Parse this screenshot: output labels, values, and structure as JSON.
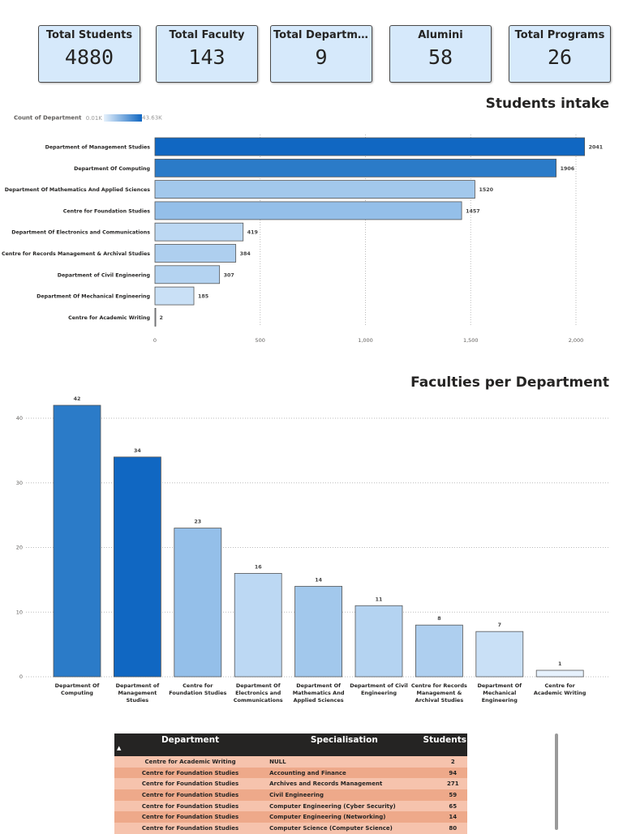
{
  "kpis": [
    {
      "label": "Total Students",
      "value": "4880"
    },
    {
      "label": "Total Faculty",
      "value": "143"
    },
    {
      "label": "Total Departments",
      "value": "9"
    },
    {
      "label": "Alumini",
      "value": "58"
    },
    {
      "label": "Total Programs",
      "value": "26"
    }
  ],
  "chart_data": [
    {
      "type": "bar",
      "orientation": "horizontal",
      "title": "Students intake",
      "legend": {
        "label": "Count of Department",
        "min": "0.01K",
        "max": "43.63K",
        "colors": [
          "#e6f1fc",
          "#1067c2"
        ]
      },
      "categories": [
        "Department of Management Studies",
        "Department Of Computing",
        "Department Of Mathematics And Applied Sciences",
        "Centre for Foundation Studies",
        "Department Of Electronics and Communications",
        "Centre for Records Management & Archival Studies",
        "Department of Civil Engineering",
        "Department Of Mechanical Engineering",
        "Centre for Academic Writing"
      ],
      "values": [
        2041,
        1906,
        1520,
        1457,
        419,
        384,
        307,
        185,
        2
      ],
      "colors": [
        "#1067c2",
        "#2b7bc8",
        "#a2c8ec",
        "#94bfe9",
        "#bcd8f3",
        "#aecfef",
        "#b4d3f1",
        "#c9e0f6",
        "#e6f1fc"
      ],
      "xticks": [
        "0",
        "500",
        "1,000",
        "1,500",
        "2,000"
      ],
      "xlim": [
        0,
        2041
      ],
      "grid": true
    },
    {
      "type": "bar",
      "orientation": "vertical",
      "title": "Faculties per Department",
      "categories": [
        "Department Of Computing",
        "Department of Management Studies",
        "Centre for Foundation Studies",
        "Department Of Electronics and Communications",
        "Department Of Mathematics And Applied Sciences",
        "Department of Civil Engineering",
        "Centre for Records Management & Archival Studies",
        "Department Of Mechanical Engineering",
        "Centre for Academic Writing"
      ],
      "values": [
        42,
        34,
        23,
        16,
        14,
        11,
        8,
        7,
        1
      ],
      "colors": [
        "#2b7bc8",
        "#1067c2",
        "#94bfe9",
        "#bcd8f3",
        "#a2c8ec",
        "#b4d3f1",
        "#aecfef",
        "#c9e0f6",
        "#e6f1fc"
      ],
      "yticks": [
        "0",
        "10",
        "20",
        "30",
        "40"
      ],
      "ylim": [
        0,
        42
      ],
      "grid": true
    }
  ],
  "table": {
    "columns": [
      "Department",
      "Specialisation",
      "Students"
    ],
    "rows": [
      [
        "Centre for Academic Writing",
        "NULL",
        "2"
      ],
      [
        "Centre for Foundation Studies",
        "Accounting and Finance",
        "94"
      ],
      [
        "Centre for Foundation Studies",
        "Archives and Records Management",
        "271"
      ],
      [
        "Centre for Foundation Studies",
        "Civil Engineering",
        "59"
      ],
      [
        "Centre for Foundation Studies",
        "Computer Engineering (Cyber Security)",
        "65"
      ],
      [
        "Centre for Foundation Studies",
        "Computer Engineering (Networking)",
        "14"
      ],
      [
        "Centre for Foundation Studies",
        "Computer Science (Computer Science)",
        "80"
      ]
    ]
  }
}
